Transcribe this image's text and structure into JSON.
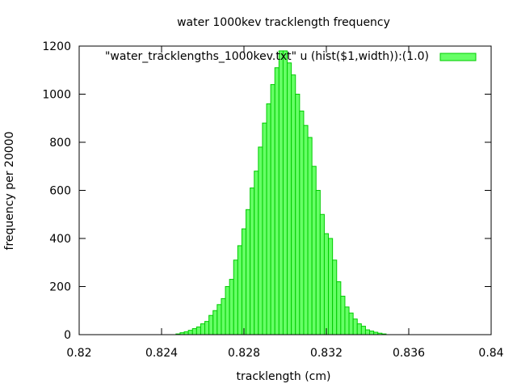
{
  "chart_data": {
    "type": "bar",
    "title": "water 1000kev tracklength frequency",
    "xlabel": "tracklength (cm)",
    "ylabel": "frequency per 20000",
    "xlim": [
      0.82,
      0.84
    ],
    "ylim": [
      0,
      1200
    ],
    "xticks": [
      "0.82",
      "0.824",
      "0.828",
      "0.832",
      "0.836",
      "0.84"
    ],
    "yticks": [
      "0",
      "200",
      "400",
      "600",
      "800",
      "1000",
      "1200"
    ],
    "legend": {
      "position": "top-right",
      "label": "\"water_tracklengths_1000kev.txt\" u (hist($1,width)):(1.0)"
    },
    "grid": false,
    "bin_width": 0.0002,
    "series": [
      {
        "x": [
          0.8248,
          0.825,
          0.8252,
          0.8254,
          0.8256,
          0.8258,
          0.826,
          0.8262,
          0.8264,
          0.8266,
          0.8268,
          0.827,
          0.8272,
          0.8274,
          0.8276,
          0.8278,
          0.828,
          0.8282,
          0.8284,
          0.8286,
          0.8288,
          0.829,
          0.8292,
          0.8294,
          0.8296,
          0.8298,
          0.83,
          0.8302,
          0.8304,
          0.8306,
          0.8308,
          0.831,
          0.8312,
          0.8314,
          0.8316,
          0.8318,
          0.832,
          0.8322,
          0.8324,
          0.8326,
          0.8328,
          0.833,
          0.8332,
          0.8334,
          0.8336,
          0.8338,
          0.834,
          0.8342,
          0.8344,
          0.8346,
          0.8348
        ],
        "values": [
          3,
          8,
          12,
          18,
          25,
          32,
          45,
          55,
          80,
          100,
          125,
          150,
          200,
          230,
          310,
          370,
          440,
          520,
          610,
          680,
          780,
          880,
          960,
          1040,
          1110,
          1180,
          1180,
          1130,
          1080,
          1000,
          930,
          870,
          820,
          700,
          600,
          500,
          420,
          400,
          310,
          220,
          160,
          115,
          90,
          65,
          45,
          35,
          20,
          15,
          10,
          6,
          3
        ]
      }
    ]
  }
}
